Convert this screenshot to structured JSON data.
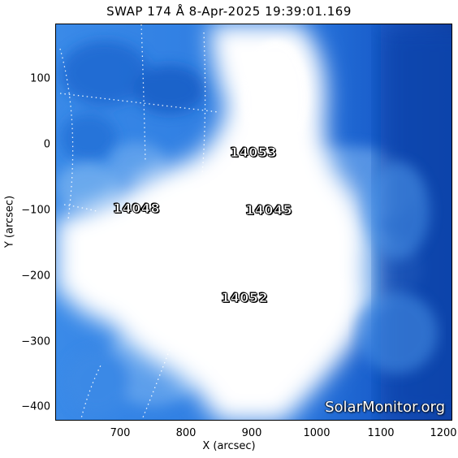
{
  "title": "SWAP 174 Å  8-Apr-2025 19:39:01.169",
  "axes": {
    "xlabel": "X (arcsec)",
    "ylabel": "Y (arcsec)",
    "x_ticks": [
      "700",
      "800",
      "900",
      "1000",
      "1100",
      "1200"
    ],
    "y_ticks": [
      "100",
      "0",
      "−100",
      "−200",
      "−300",
      "−400"
    ]
  },
  "regions": [
    {
      "label": "14053"
    },
    {
      "label": "14048"
    },
    {
      "label": "14045"
    },
    {
      "label": "14052"
    }
  ],
  "watermark": "SolarMonitor.org",
  "colors": {
    "deep": "#0a3ea8",
    "mid": "#2d7ee6",
    "light": "#8fc0f2",
    "saturated": "#ffffff"
  }
}
